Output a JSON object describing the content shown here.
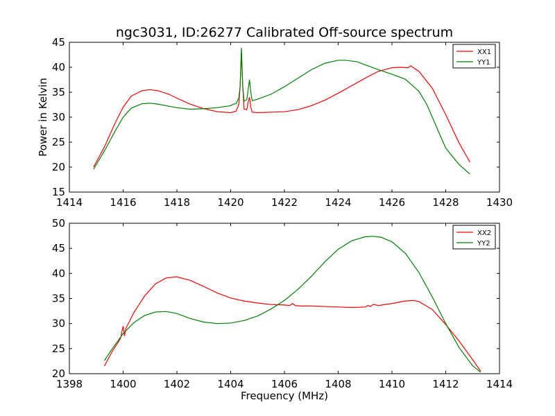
{
  "title": "ngc3031, ID:26277 Calibrated Off-source spectrum",
  "chart_data": [
    {
      "type": "line",
      "title": "ngc3031, ID:26277 Calibrated Off-source spectrum",
      "xlabel": "",
      "ylabel": "Power in Kelvin",
      "xlim": [
        1414,
        1430
      ],
      "ylim": [
        15,
        45
      ],
      "xticks": [
        1414,
        1416,
        1418,
        1420,
        1422,
        1424,
        1426,
        1428,
        1430
      ],
      "yticks": [
        15,
        20,
        25,
        30,
        35,
        40,
        45
      ],
      "grid": false,
      "legend_position": "top-right",
      "series": [
        {
          "name": "XX1",
          "color": "#ff0000",
          "x": [
            1414.9,
            1415.3,
            1415.7,
            1416.0,
            1416.3,
            1416.7,
            1417.0,
            1417.3,
            1417.7,
            1418.0,
            1418.5,
            1419.0,
            1419.5,
            1420.0,
            1420.2,
            1420.3,
            1420.35,
            1420.4,
            1420.45,
            1420.5,
            1420.6,
            1420.65,
            1420.7,
            1420.75,
            1420.8,
            1421.0,
            1421.5,
            1422.0,
            1422.5,
            1423.0,
            1423.5,
            1424.0,
            1424.5,
            1425.0,
            1425.5,
            1426.0,
            1426.3,
            1426.6,
            1426.7,
            1426.8,
            1427.0,
            1427.5,
            1428.0,
            1428.5,
            1428.9
          ],
          "y": [
            20.0,
            24.0,
            28.8,
            32.0,
            34.2,
            35.3,
            35.5,
            35.3,
            34.6,
            33.8,
            32.6,
            31.7,
            31.1,
            30.9,
            31.2,
            32.5,
            36.0,
            43.0,
            36.0,
            31.6,
            31.5,
            33.0,
            34.0,
            32.0,
            31.0,
            30.9,
            31.0,
            31.1,
            31.5,
            32.3,
            33.4,
            34.8,
            36.3,
            37.8,
            39.2,
            39.9,
            40.0,
            39.9,
            40.3,
            39.9,
            39.2,
            35.8,
            30.5,
            24.8,
            21.0
          ]
        },
        {
          "name": "YY1",
          "color": "#008000",
          "x": [
            1414.9,
            1415.3,
            1415.7,
            1416.0,
            1416.3,
            1416.7,
            1417.0,
            1417.3,
            1417.7,
            1418.0,
            1418.5,
            1419.0,
            1419.5,
            1420.0,
            1420.1,
            1420.2,
            1420.3,
            1420.35,
            1420.4,
            1420.45,
            1420.5,
            1420.6,
            1420.65,
            1420.7,
            1420.75,
            1420.8,
            1421.0,
            1421.5,
            1422.0,
            1422.5,
            1423.0,
            1423.5,
            1424.0,
            1424.3,
            1424.7,
            1425.0,
            1425.5,
            1426.0,
            1426.5,
            1427.0,
            1427.3,
            1427.7,
            1428.0,
            1428.5,
            1428.9
          ],
          "y": [
            19.6,
            23.2,
            27.2,
            30.0,
            31.8,
            32.7,
            32.8,
            32.6,
            32.2,
            31.9,
            31.6,
            31.7,
            31.9,
            32.3,
            32.6,
            32.7,
            33.8,
            36.0,
            43.9,
            36.0,
            33.2,
            33.5,
            35.5,
            37.5,
            35.0,
            33.3,
            33.6,
            34.6,
            36.1,
            37.8,
            39.5,
            40.8,
            41.4,
            41.4,
            41.1,
            40.5,
            39.5,
            38.6,
            37.6,
            35.2,
            32.5,
            27.5,
            23.8,
            20.5,
            18.6
          ]
        }
      ]
    },
    {
      "type": "line",
      "title": "",
      "xlabel": "Frequency (MHz)",
      "ylabel": "",
      "xlim": [
        1398,
        1414
      ],
      "ylim": [
        20,
        50
      ],
      "xticks": [
        1398,
        1400,
        1402,
        1404,
        1406,
        1408,
        1410,
        1412,
        1414
      ],
      "yticks": [
        20,
        25,
        30,
        35,
        40,
        45,
        50
      ],
      "grid": false,
      "legend_position": "top-right",
      "series": [
        {
          "name": "XX2",
          "color": "#ff0000",
          "x": [
            1399.3,
            1399.6,
            1399.9,
            1400.0,
            1400.05,
            1400.1,
            1400.4,
            1400.8,
            1401.2,
            1401.6,
            1402.0,
            1402.5,
            1403.0,
            1403.5,
            1404.0,
            1404.5,
            1405.0,
            1405.5,
            1406.0,
            1406.2,
            1406.3,
            1406.4,
            1406.6,
            1407.0,
            1407.5,
            1408.0,
            1408.5,
            1409.0,
            1409.1,
            1409.2,
            1409.3,
            1409.5,
            1410.0,
            1410.5,
            1410.8,
            1411.0,
            1411.5,
            1412.0,
            1412.5,
            1413.0,
            1413.3
          ],
          "y": [
            21.5,
            24.5,
            27.0,
            29.5,
            27.5,
            29.0,
            32.2,
            35.5,
            37.9,
            39.1,
            39.3,
            38.6,
            37.4,
            36.1,
            35.1,
            34.5,
            34.1,
            33.8,
            33.7,
            33.6,
            34.0,
            33.6,
            33.5,
            33.5,
            33.4,
            33.3,
            33.2,
            33.3,
            33.6,
            33.4,
            33.8,
            33.6,
            34.0,
            34.5,
            34.6,
            34.4,
            32.8,
            29.8,
            26.5,
            22.8,
            20.5
          ]
        },
        {
          "name": "YY2",
          "color": "#008000",
          "x": [
            1399.3,
            1399.6,
            1400.0,
            1400.4,
            1400.8,
            1401.2,
            1401.6,
            1402.0,
            1402.5,
            1403.0,
            1403.5,
            1404.0,
            1404.5,
            1405.0,
            1405.5,
            1406.0,
            1406.5,
            1407.0,
            1407.5,
            1408.0,
            1408.5,
            1409.0,
            1409.3,
            1409.6,
            1410.0,
            1410.5,
            1411.0,
            1411.5,
            1412.0,
            1412.5,
            1413.0,
            1413.3
          ],
          "y": [
            22.6,
            25.0,
            28.0,
            30.2,
            31.6,
            32.3,
            32.4,
            32.0,
            31.0,
            30.3,
            30.0,
            30.1,
            30.6,
            31.5,
            32.9,
            34.6,
            36.8,
            39.4,
            42.3,
            44.8,
            46.5,
            47.3,
            47.4,
            47.2,
            46.3,
            44.0,
            40.2,
            35.3,
            30.0,
            25.2,
            21.6,
            20.3
          ]
        }
      ]
    }
  ]
}
